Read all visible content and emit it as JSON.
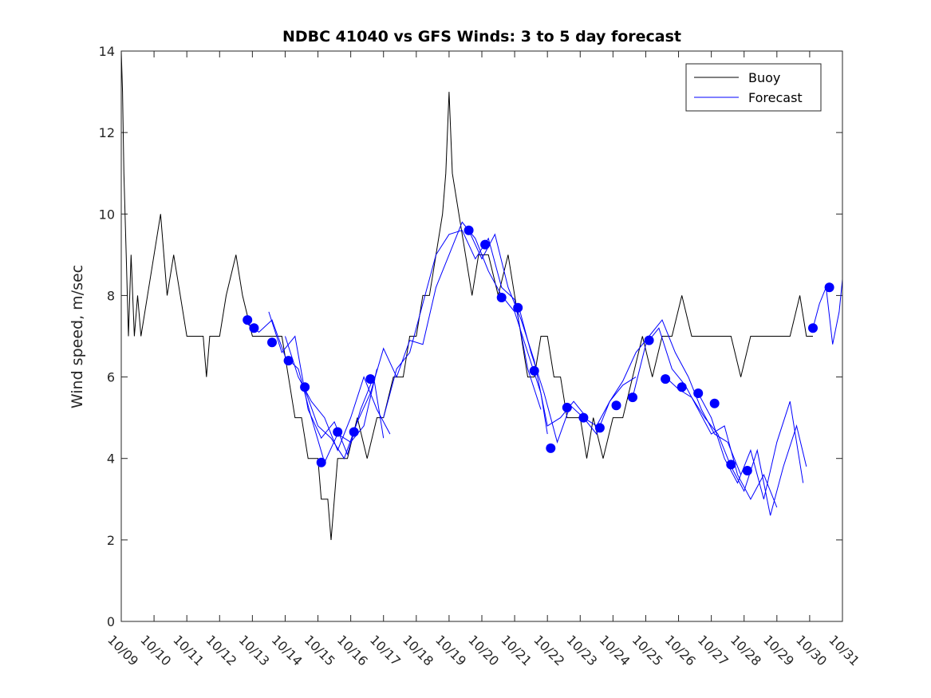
{
  "chart_data": {
    "type": "line",
    "title": "NDBC 41040 vs GFS Winds: 3 to 5 day forecast",
    "xlabel": "",
    "ylabel": "Wind speed, m/sec",
    "xlim": [
      0,
      22
    ],
    "ylim": [
      0,
      14
    ],
    "yticks": [
      0,
      2,
      4,
      6,
      8,
      10,
      12,
      14
    ],
    "categories": [
      "10/09",
      "10/10",
      "10/11",
      "10/12",
      "10/13",
      "10/14",
      "10/15",
      "10/16",
      "10/17",
      "10/18",
      "10/19",
      "10/20",
      "10/21",
      "10/22",
      "10/23",
      "10/24",
      "10/25",
      "10/26",
      "10/27",
      "10/28",
      "10/29",
      "10/30",
      "10/31"
    ],
    "legend": {
      "position": "top-right",
      "entries": [
        "Buoy",
        "Forecast"
      ]
    },
    "series": [
      {
        "name": "Buoy",
        "color": "#000000",
        "points": [
          [
            0.0,
            14
          ],
          [
            0.04,
            13
          ],
          [
            0.08,
            11
          ],
          [
            0.15,
            9
          ],
          [
            0.22,
            7
          ],
          [
            0.3,
            9
          ],
          [
            0.4,
            7
          ],
          [
            0.5,
            8
          ],
          [
            0.6,
            7
          ],
          [
            0.8,
            8
          ],
          [
            1.0,
            9
          ],
          [
            1.2,
            10
          ],
          [
            1.4,
            8
          ],
          [
            1.6,
            9
          ],
          [
            1.8,
            8
          ],
          [
            2.0,
            7
          ],
          [
            2.3,
            7
          ],
          [
            2.5,
            7
          ],
          [
            2.6,
            6
          ],
          [
            2.7,
            7
          ],
          [
            3.0,
            7
          ],
          [
            3.2,
            8
          ],
          [
            3.5,
            9
          ],
          [
            3.7,
            8
          ],
          [
            4.0,
            7
          ],
          [
            4.3,
            7
          ],
          [
            4.6,
            7
          ],
          [
            4.9,
            7
          ],
          [
            5.1,
            6
          ],
          [
            5.3,
            5
          ],
          [
            5.5,
            5
          ],
          [
            5.7,
            4
          ],
          [
            5.9,
            4
          ],
          [
            6.0,
            4
          ],
          [
            6.1,
            3
          ],
          [
            6.3,
            3
          ],
          [
            6.4,
            2
          ],
          [
            6.5,
            3
          ],
          [
            6.6,
            4
          ],
          [
            6.9,
            4
          ],
          [
            7.2,
            5
          ],
          [
            7.5,
            4
          ],
          [
            7.8,
            5
          ],
          [
            8.0,
            5
          ],
          [
            8.3,
            6
          ],
          [
            8.6,
            6
          ],
          [
            8.8,
            7
          ],
          [
            9.0,
            7
          ],
          [
            9.2,
            8
          ],
          [
            9.4,
            8
          ],
          [
            9.6,
            9
          ],
          [
            9.8,
            10
          ],
          [
            9.9,
            11
          ],
          [
            10.0,
            13
          ],
          [
            10.1,
            11
          ],
          [
            10.3,
            10
          ],
          [
            10.5,
            9
          ],
          [
            10.7,
            8
          ],
          [
            10.9,
            9
          ],
          [
            11.2,
            9
          ],
          [
            11.5,
            8
          ],
          [
            11.8,
            9
          ],
          [
            12.0,
            8
          ],
          [
            12.2,
            7
          ],
          [
            12.4,
            6
          ],
          [
            12.6,
            6
          ],
          [
            12.8,
            7
          ],
          [
            13.0,
            7
          ],
          [
            13.2,
            6
          ],
          [
            13.4,
            6
          ],
          [
            13.6,
            5
          ],
          [
            13.8,
            5
          ],
          [
            14.0,
            5
          ],
          [
            14.2,
            4
          ],
          [
            14.4,
            5
          ],
          [
            14.7,
            4
          ],
          [
            15.0,
            5
          ],
          [
            15.3,
            5
          ],
          [
            15.6,
            6
          ],
          [
            15.9,
            7
          ],
          [
            16.2,
            6
          ],
          [
            16.5,
            7
          ],
          [
            16.8,
            7
          ],
          [
            17.1,
            8
          ],
          [
            17.4,
            7
          ],
          [
            17.7,
            7
          ],
          [
            18.0,
            7
          ],
          [
            18.3,
            7
          ],
          [
            18.6,
            7
          ],
          [
            18.9,
            6
          ],
          [
            19.2,
            7
          ],
          [
            19.5,
            7
          ],
          [
            19.8,
            7
          ],
          [
            20.1,
            7
          ],
          [
            20.4,
            7
          ],
          [
            20.7,
            8
          ],
          [
            20.9,
            7
          ],
          [
            21.0,
            7
          ],
          [
            21.1,
            7
          ]
        ]
      },
      {
        "name": "Forecast",
        "color": "#0000ff",
        "markers": [
          [
            3.85,
            7.4
          ],
          [
            4.05,
            7.2
          ],
          [
            4.6,
            6.85
          ],
          [
            5.1,
            6.4
          ],
          [
            5.6,
            5.75
          ],
          [
            6.1,
            3.9
          ],
          [
            6.6,
            4.65
          ],
          [
            7.1,
            4.65
          ],
          [
            7.6,
            5.95
          ],
          [
            10.6,
            9.6
          ],
          [
            11.1,
            9.25
          ],
          [
            11.6,
            7.95
          ],
          [
            12.1,
            7.7
          ],
          [
            12.6,
            6.15
          ],
          [
            13.1,
            4.25
          ],
          [
            13.6,
            5.25
          ],
          [
            14.1,
            5.0
          ],
          [
            14.6,
            4.75
          ],
          [
            15.1,
            5.3
          ],
          [
            15.6,
            5.5
          ],
          [
            16.1,
            6.9
          ],
          [
            16.6,
            5.95
          ],
          [
            17.1,
            5.75
          ],
          [
            17.6,
            5.6
          ],
          [
            18.1,
            5.35
          ],
          [
            18.6,
            3.85
          ],
          [
            19.1,
            3.7
          ],
          [
            21.1,
            7.2
          ],
          [
            21.6,
            8.2
          ]
        ],
        "traces": [
          [
            [
              3.85,
              7.3
            ],
            [
              4.2,
              7.1
            ],
            [
              4.6,
              7.4
            ],
            [
              5.0,
              6.5
            ],
            [
              5.4,
              6.2
            ],
            [
              5.8,
              5.0
            ],
            [
              6.2,
              3.9
            ],
            [
              6.6,
              4.6
            ],
            [
              7.0,
              4.4
            ],
            [
              7.4,
              4.8
            ],
            [
              7.8,
              6.2
            ]
          ],
          [
            [
              4.5,
              7.6
            ],
            [
              4.9,
              6.6
            ],
            [
              5.3,
              7.0
            ],
            [
              5.7,
              5.2
            ],
            [
              6.1,
              4.5
            ],
            [
              6.5,
              4.9
            ],
            [
              6.9,
              4.1
            ],
            [
              7.3,
              5.2
            ],
            [
              7.7,
              6.0
            ],
            [
              8.0,
              4.5
            ]
          ],
          [
            [
              5.0,
              7.0
            ],
            [
              5.4,
              6.0
            ],
            [
              5.8,
              5.4
            ],
            [
              6.2,
              5.0
            ],
            [
              6.6,
              4.2
            ],
            [
              7.0,
              5.0
            ],
            [
              7.4,
              6.0
            ],
            [
              7.8,
              5.2
            ],
            [
              8.2,
              4.6
            ]
          ],
          [
            [
              5.6,
              5.7
            ],
            [
              6.0,
              4.8
            ],
            [
              6.4,
              4.5
            ],
            [
              6.8,
              4.0
            ],
            [
              7.2,
              4.9
            ],
            [
              7.6,
              5.6
            ],
            [
              8.0,
              6.7
            ],
            [
              8.4,
              6.0
            ],
            [
              8.8,
              6.9
            ],
            [
              9.2,
              6.8
            ],
            [
              9.6,
              8.2
            ],
            [
              10.0,
              9.0
            ],
            [
              10.4,
              9.8
            ],
            [
              10.8,
              9.4
            ],
            [
              11.2,
              8.6
            ],
            [
              11.6,
              8.0
            ],
            [
              12.0,
              7.6
            ],
            [
              12.4,
              6.6
            ],
            [
              12.8,
              5.6
            ],
            [
              13.0,
              4.6
            ]
          ],
          [
            [
              8.0,
              5.0
            ],
            [
              8.4,
              6.2
            ],
            [
              8.8,
              6.6
            ],
            [
              9.2,
              7.8
            ],
            [
              9.6,
              9.0
            ],
            [
              10.0,
              9.5
            ],
            [
              10.4,
              9.6
            ],
            [
              10.8,
              8.9
            ],
            [
              11.2,
              9.4
            ],
            [
              11.6,
              8.2
            ],
            [
              12.0,
              7.9
            ],
            [
              12.4,
              6.2
            ],
            [
              12.8,
              5.2
            ]
          ],
          [
            [
              10.6,
              9.6
            ],
            [
              11.0,
              8.9
            ],
            [
              11.4,
              9.5
            ],
            [
              11.8,
              8.2
            ],
            [
              12.2,
              7.4
            ],
            [
              12.6,
              6.4
            ],
            [
              13.0,
              4.8
            ],
            [
              13.4,
              5.0
            ],
            [
              13.8,
              5.4
            ],
            [
              14.2,
              5.0
            ]
          ],
          [
            [
              12.1,
              7.8
            ],
            [
              12.5,
              6.6
            ],
            [
              12.9,
              5.6
            ],
            [
              13.3,
              4.4
            ],
            [
              13.7,
              5.3
            ],
            [
              14.1,
              5.0
            ],
            [
              14.5,
              4.8
            ],
            [
              14.9,
              5.4
            ],
            [
              15.3,
              5.8
            ],
            [
              15.7,
              6.0
            ]
          ],
          [
            [
              14.1,
              5.0
            ],
            [
              14.5,
              4.6
            ],
            [
              14.9,
              5.4
            ],
            [
              15.3,
              5.9
            ],
            [
              15.7,
              6.6
            ],
            [
              16.1,
              7.0
            ],
            [
              16.5,
              7.4
            ],
            [
              16.9,
              6.6
            ],
            [
              17.3,
              6.0
            ],
            [
              17.7,
              5.2
            ],
            [
              18.1,
              4.6
            ],
            [
              18.5,
              4.4
            ],
            [
              18.9,
              3.6
            ]
          ],
          [
            [
              15.6,
              5.5
            ],
            [
              16.0,
              6.8
            ],
            [
              16.4,
              7.2
            ],
            [
              16.8,
              6.2
            ],
            [
              17.2,
              5.8
            ],
            [
              17.6,
              5.2
            ],
            [
              18.0,
              4.6
            ],
            [
              18.4,
              4.8
            ],
            [
              18.8,
              3.6
            ],
            [
              19.2,
              3.0
            ],
            [
              19.6,
              3.6
            ],
            [
              20.0,
              2.8
            ]
          ],
          [
            [
              16.6,
              6.0
            ],
            [
              17.0,
              5.7
            ],
            [
              17.4,
              5.5
            ],
            [
              17.8,
              5.0
            ],
            [
              18.2,
              4.6
            ],
            [
              18.6,
              3.8
            ],
            [
              19.0,
              3.2
            ],
            [
              19.4,
              4.2
            ],
            [
              19.8,
              2.6
            ],
            [
              20.2,
              3.8
            ],
            [
              20.6,
              4.8
            ],
            [
              20.9,
              3.8
            ]
          ],
          [
            [
              17.6,
              5.6
            ],
            [
              18.0,
              5.0
            ],
            [
              18.4,
              4.0
            ],
            [
              18.8,
              3.4
            ],
            [
              19.2,
              4.2
            ],
            [
              19.6,
              3.0
            ],
            [
              20.0,
              4.4
            ],
            [
              20.4,
              5.4
            ],
            [
              20.8,
              3.4
            ]
          ],
          [
            [
              21.1,
              7.2
            ],
            [
              21.3,
              7.8
            ],
            [
              21.5,
              8.2
            ],
            [
              21.7,
              6.8
            ],
            [
              21.9,
              7.6
            ],
            [
              22.0,
              8.4
            ]
          ]
        ]
      }
    ]
  }
}
